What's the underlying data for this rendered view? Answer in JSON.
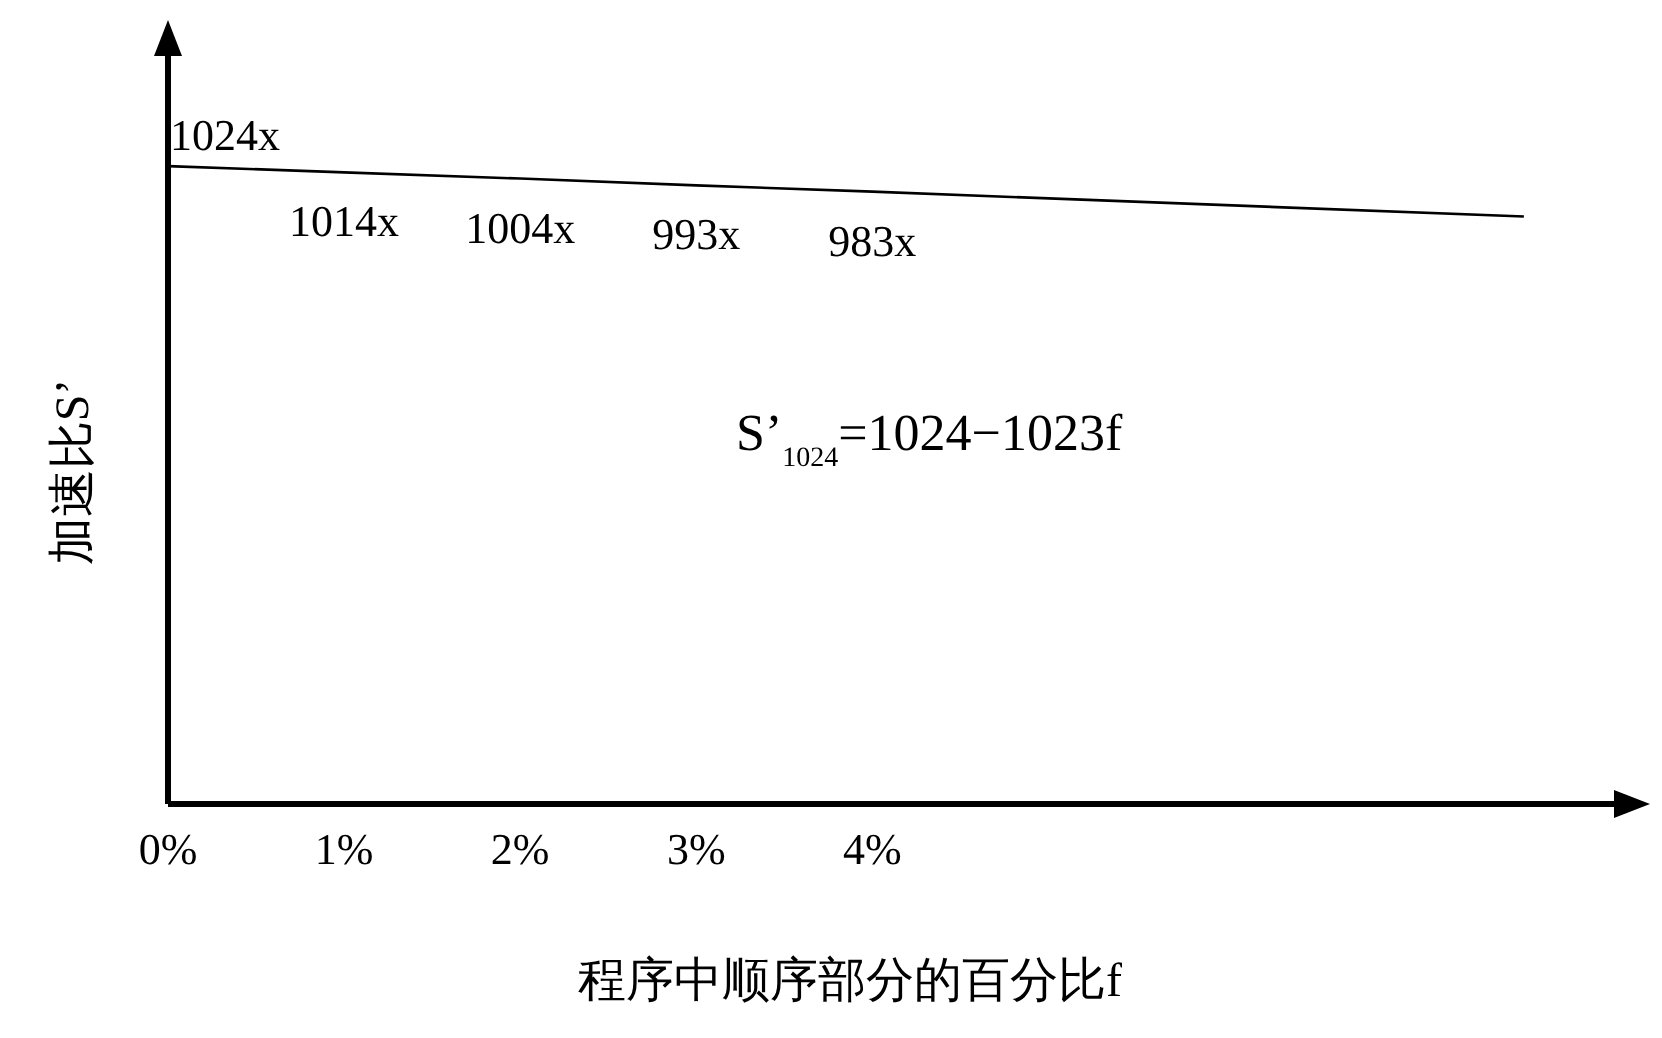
{
  "chart_data": {
    "type": "line",
    "xlabel": "程序中顺序部分的百分比f",
    "ylabel": "加速比S’",
    "x": [
      0,
      1,
      2,
      3,
      4,
      7.7
    ],
    "series": [
      {
        "color": "#000000",
        "values": [
          1024,
          1014,
          1004,
          993,
          983,
          943
        ],
        "value_labels": [
          "1024x",
          "1014x",
          "1004x",
          "993x",
          "983x",
          null
        ]
      }
    ],
    "xlim": [
      0,
      8.28
    ],
    "ylim": [
      0,
      1220
    ],
    "xticks": [
      {
        "value": 0,
        "label": "0%"
      },
      {
        "value": 1,
        "label": "1%"
      },
      {
        "value": 2,
        "label": "2%"
      },
      {
        "value": 3,
        "label": "3%"
      },
      {
        "value": 4,
        "label": "4%"
      }
    ],
    "tick_labels": "x",
    "grid": false,
    "annotations": [
      "S’$_{1024}$=1024−1023f"
    ]
  }
}
